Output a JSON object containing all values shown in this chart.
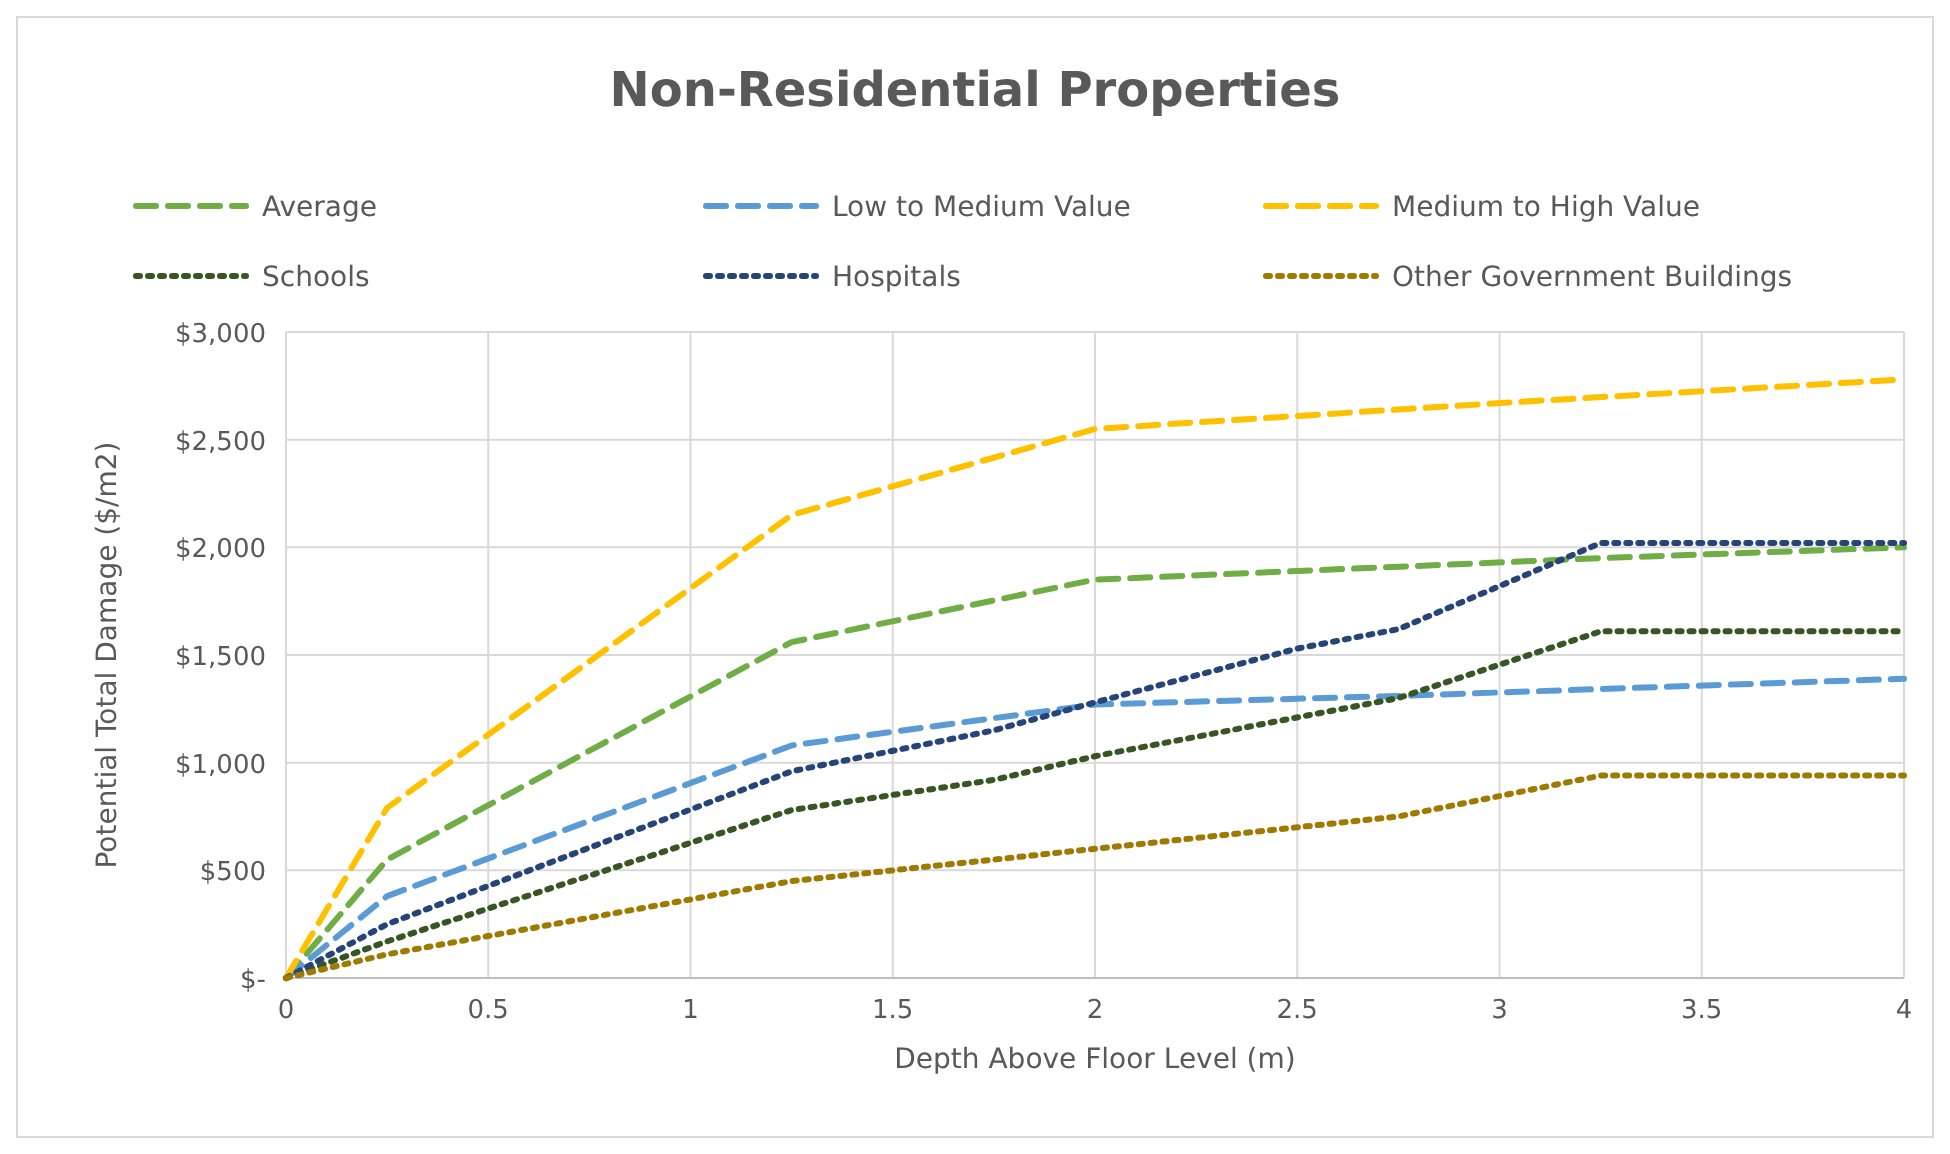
{
  "chart_data": {
    "type": "line",
    "title": "Non-Residential Properties",
    "xlabel": "Depth Above Floor Level (m)",
    "ylabel": "Potential Total Damage ($/m2)",
    "xlim": [
      0,
      4
    ],
    "xticks": [
      0,
      0.5,
      1,
      1.5,
      2,
      2.5,
      3,
      3.5,
      4
    ],
    "ylim": [
      0,
      3000
    ],
    "yticks": [
      {
        "value": 0,
        "label": "$-"
      },
      {
        "value": 500,
        "label": "$500"
      },
      {
        "value": 1000,
        "label": "$1,000"
      },
      {
        "value": 1500,
        "label": "$1,500"
      },
      {
        "value": 2000,
        "label": "$2,000"
      },
      {
        "value": 2500,
        "label": "$2,500"
      },
      {
        "value": 3000,
        "label": "$3,000"
      }
    ],
    "grid": true,
    "legend": "top",
    "marker": "none",
    "series": [
      {
        "name": "Average",
        "color": "#70ad47",
        "line_style": "dashed",
        "x": [
          0,
          0.25,
          1.25,
          2,
          3.25,
          4
        ],
        "values": [
          0,
          550,
          1560,
          1850,
          1950,
          2000
        ]
      },
      {
        "name": "Low to Medium Value",
        "color": "#5b9bd5",
        "line_style": "dashed",
        "x": [
          0,
          0.25,
          1.25,
          2,
          2.75,
          4
        ],
        "values": [
          0,
          380,
          1080,
          1270,
          1310,
          1390
        ]
      },
      {
        "name": "Medium to High Value",
        "color": "#ffc000",
        "line_style": "dashed",
        "x": [
          0,
          0.25,
          1.25,
          2,
          3,
          4
        ],
        "values": [
          0,
          790,
          2150,
          2550,
          2670,
          2780
        ]
      },
      {
        "name": "Schools",
        "color": "#375623",
        "line_style": "dotted",
        "x": [
          0,
          0.25,
          1.25,
          1.75,
          2,
          2.75,
          3.25,
          4
        ],
        "values": [
          0,
          170,
          780,
          920,
          1030,
          1300,
          1610,
          1610
        ]
      },
      {
        "name": "Hospitals",
        "color": "#264478",
        "line_style": "dotted",
        "x": [
          0,
          0.25,
          1.25,
          1.75,
          2,
          2.5,
          2.75,
          3.25,
          4
        ],
        "values": [
          0,
          250,
          960,
          1150,
          1280,
          1530,
          1620,
          2020,
          2020
        ]
      },
      {
        "name": "Other Government Buildings",
        "color": "#9e7a00",
        "line_style": "dotted",
        "x": [
          0,
          0.25,
          1.25,
          2,
          2.75,
          3.25,
          4
        ],
        "values": [
          0,
          110,
          450,
          600,
          750,
          940,
          940
        ]
      }
    ]
  }
}
